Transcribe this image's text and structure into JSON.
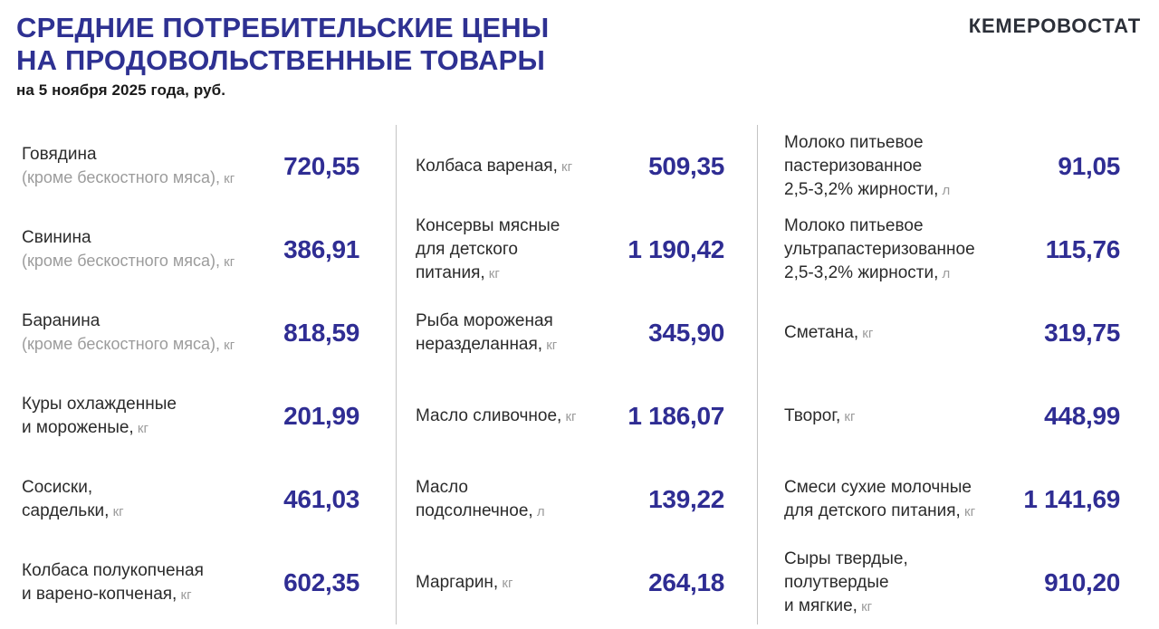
{
  "header": {
    "title_line1": "СРЕДНИЕ ПОТРЕБИТЕЛЬСКИЕ ЦЕНЫ",
    "title_line2": "НА ПРОДОВОЛЬСТВЕННЫЕ ТОВАРЫ",
    "subtitle": "на 5 ноября 2025 года, руб.",
    "brand": "КЕМЕРОВОСТАТ"
  },
  "colors": {
    "accent_blue": "#2e3192",
    "price_blue": "#2f2d93",
    "text_dark": "#2b2b2b",
    "text_gray": "#9c9c9c",
    "brand_dark": "#2b2f38",
    "divider_gray": "#c4c4c4"
  },
  "chart_data": {
    "type": "table",
    "title": "СРЕДНИЕ ПОТРЕБИТЕЛЬСКИЕ ЦЕНЫ НА ПРОДОВОЛЬСТВЕННЫЕ ТОВАРЫ",
    "subtitle": "на 5 ноября 2025 года, руб.",
    "currency": "руб.",
    "columns": [
      {
        "items": [
          {
            "name_lines": [
              "Говядина"
            ],
            "note": "(кроме бескостного мяса),",
            "unit": "кг",
            "price": "720,55",
            "price_value": 720.55
          },
          {
            "name_lines": [
              "Свинина"
            ],
            "note": "(кроме бескостного мяса),",
            "unit": "кг",
            "price": "386,91",
            "price_value": 386.91
          },
          {
            "name_lines": [
              "Баранина"
            ],
            "note": "(кроме бескостного мяса),",
            "unit": "кг",
            "price": "818,59",
            "price_value": 818.59
          },
          {
            "name_lines": [
              "Куры охлажденные",
              "и мороженые,"
            ],
            "note": null,
            "unit": "кг",
            "price": "201,99",
            "price_value": 201.99
          },
          {
            "name_lines": [
              "Сосиски,",
              "сардельки,"
            ],
            "note": null,
            "unit": "кг",
            "price": "461,03",
            "price_value": 461.03
          },
          {
            "name_lines": [
              "Колбаса полукопченая",
              "и варено-копченая,"
            ],
            "note": null,
            "unit": "кг",
            "price": "602,35",
            "price_value": 602.35
          }
        ]
      },
      {
        "items": [
          {
            "name_lines": [
              "Колбаса вареная,"
            ],
            "note": null,
            "unit": "кг",
            "price": "509,35",
            "price_value": 509.35
          },
          {
            "name_lines": [
              "Консервы мясные",
              "для детского",
              "питания,"
            ],
            "note": null,
            "unit": "кг",
            "price": "1 190,42",
            "price_value": 1190.42
          },
          {
            "name_lines": [
              "Рыба мороженая",
              "неразделанная,"
            ],
            "note": null,
            "unit": "кг",
            "price": "345,90",
            "price_value": 345.9
          },
          {
            "name_lines": [
              "Масло сливочное,"
            ],
            "note": null,
            "unit": "кг",
            "price": "1 186,07",
            "price_value": 1186.07
          },
          {
            "name_lines": [
              "Масло",
              "подсолнечное,"
            ],
            "note": null,
            "unit": "л",
            "price": "139,22",
            "price_value": 139.22
          },
          {
            "name_lines": [
              "Маргарин,"
            ],
            "note": null,
            "unit": "кг",
            "price": "264,18",
            "price_value": 264.18
          }
        ]
      },
      {
        "items": [
          {
            "name_lines": [
              "Молоко питьевое",
              "пастеризованное",
              "2,5-3,2% жирности,"
            ],
            "note": null,
            "unit": "л",
            "price": "91,05",
            "price_value": 91.05
          },
          {
            "name_lines": [
              "Молоко питьевое",
              "ультрапастеризованное",
              "2,5-3,2% жирности,"
            ],
            "note": null,
            "unit": "л",
            "price": "115,76",
            "price_value": 115.76
          },
          {
            "name_lines": [
              "Сметана,"
            ],
            "note": null,
            "unit": "кг",
            "price": "319,75",
            "price_value": 319.75
          },
          {
            "name_lines": [
              "Творог,"
            ],
            "note": null,
            "unit": "кг",
            "price": "448,99",
            "price_value": 448.99
          },
          {
            "name_lines": [
              "Смеси сухие молочные",
              "для детского питания,"
            ],
            "note": null,
            "unit": "кг",
            "price": "1 141,69",
            "price_value": 1141.69
          },
          {
            "name_lines": [
              "Сыры твердые,",
              "полутвердые",
              "и мягкие,"
            ],
            "note": null,
            "unit": "кг",
            "price": "910,20",
            "price_value": 910.2
          }
        ]
      }
    ]
  }
}
